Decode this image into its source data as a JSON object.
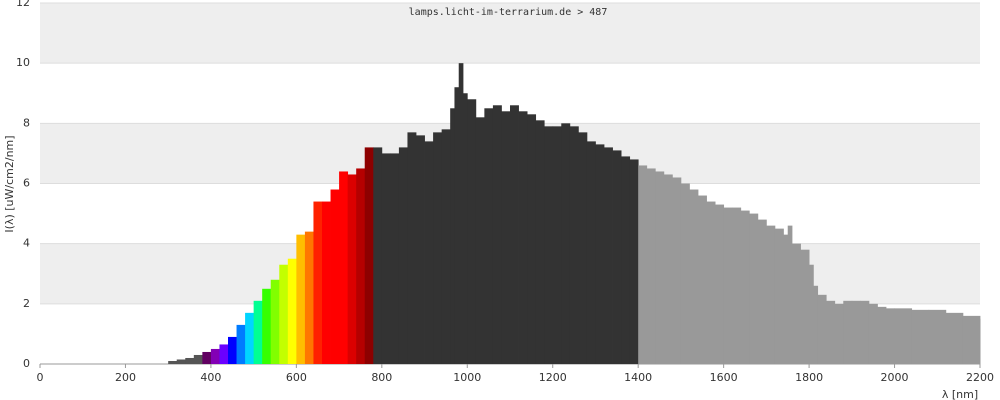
{
  "chart_data": {
    "type": "spectrum",
    "title": "lamps.licht-im-terrarium.de > 487",
    "x_label": "λ [nm]",
    "y_label": "I(λ)  [uW/cm2/nm]",
    "x": [
      300,
      320,
      340,
      360,
      380,
      400,
      420,
      440,
      460,
      480,
      500,
      520,
      540,
      560,
      580,
      600,
      620,
      640,
      660,
      680,
      700,
      720,
      740,
      760,
      780,
      800,
      820,
      840,
      860,
      880,
      900,
      920,
      940,
      960,
      970,
      980,
      990,
      1000,
      1020,
      1040,
      1060,
      1080,
      1100,
      1120,
      1140,
      1160,
      1180,
      1200,
      1220,
      1240,
      1260,
      1280,
      1300,
      1320,
      1340,
      1360,
      1380,
      1400,
      1420,
      1440,
      1460,
      1480,
      1500,
      1520,
      1540,
      1560,
      1580,
      1600,
      1620,
      1640,
      1660,
      1680,
      1700,
      1720,
      1740,
      1750,
      1760,
      1780,
      1800,
      1810,
      1820,
      1840,
      1860,
      1880,
      1900,
      1920,
      1940,
      1960,
      1980,
      2000,
      2040,
      2080,
      2120,
      2160,
      2200
    ],
    "values": [
      0.1,
      0.15,
      0.2,
      0.3,
      0.4,
      0.5,
      0.65,
      0.9,
      1.3,
      1.7,
      2.1,
      2.5,
      2.8,
      3.3,
      3.5,
      4.3,
      4.4,
      5.4,
      5.4,
      5.8,
      6.4,
      6.3,
      6.5,
      7.2,
      7.2,
      7.0,
      7.0,
      7.2,
      7.7,
      7.6,
      7.4,
      7.7,
      7.8,
      8.5,
      9.2,
      10.0,
      9.0,
      8.8,
      8.2,
      8.5,
      8.6,
      8.4,
      8.6,
      8.4,
      8.3,
      8.1,
      7.9,
      7.9,
      8.0,
      7.9,
      7.7,
      7.4,
      7.3,
      7.2,
      7.1,
      6.9,
      6.8,
      6.6,
      6.5,
      6.4,
      6.3,
      6.2,
      6.0,
      5.8,
      5.6,
      5.4,
      5.3,
      5.2,
      5.2,
      5.1,
      5.0,
      4.8,
      4.6,
      4.5,
      4.3,
      4.6,
      4.0,
      3.8,
      3.3,
      2.6,
      2.3,
      2.1,
      2.0,
      2.1,
      2.1,
      2.1,
      2.0,
      1.9,
      1.85,
      1.85,
      1.8,
      1.8,
      1.7,
      1.6,
      1.5
    ],
    "ir_a_color": "#333333",
    "ir_b_color": "#999999",
    "uv_color": "#555555",
    "xlim": [
      0,
      2200
    ],
    "xticks": [
      0,
      200,
      400,
      600,
      800,
      1000,
      1200,
      1400,
      1600,
      1800,
      2000,
      2200
    ],
    "ylim": [
      0,
      12
    ],
    "yticks": [
      0,
      2,
      4,
      6,
      8,
      10,
      12
    ],
    "grid": true
  }
}
